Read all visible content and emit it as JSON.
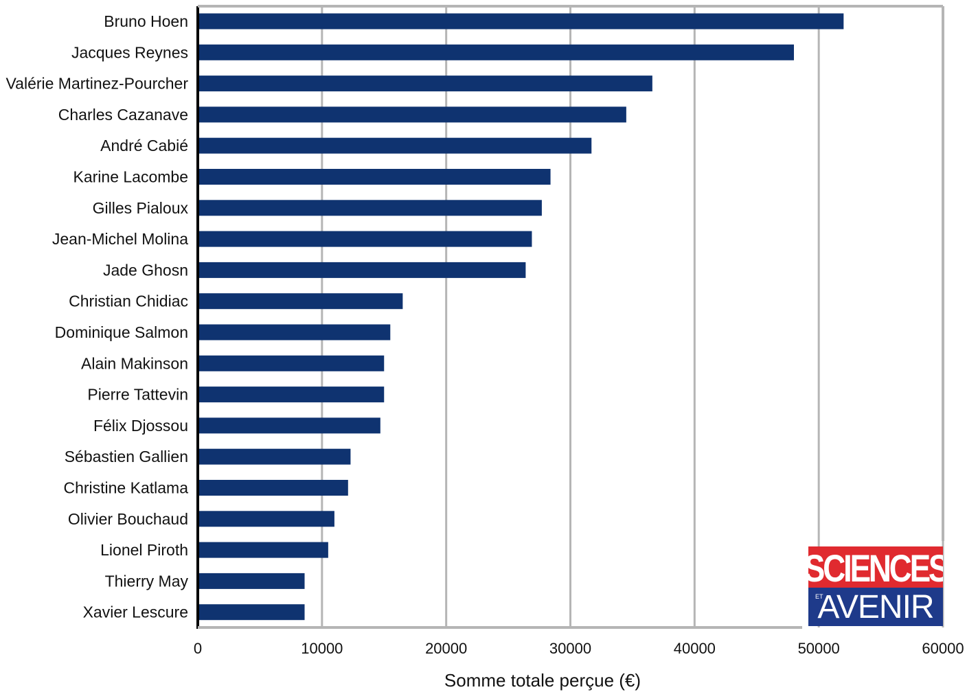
{
  "chart_data": {
    "type": "bar",
    "orientation": "horizontal",
    "categories": [
      "Bruno Hoen",
      "Jacques Reynes",
      "Valérie Martinez-Pourcher",
      "Charles Cazanave",
      "André Cabié",
      "Karine Lacombe",
      "Gilles Pialoux",
      "Jean-Michel Molina",
      "Jade Ghosn",
      "Christian Chidiac",
      "Dominique Salmon",
      "Alain Makinson",
      "Pierre Tattevin",
      "Félix Djossou",
      "Sébastien Gallien",
      "Christine Katlama",
      "Olivier Bouchaud",
      "Lionel Piroth",
      "Thierry May",
      "Xavier Lescure"
    ],
    "values": [
      52000,
      48000,
      36600,
      34500,
      31700,
      28400,
      27700,
      26900,
      26400,
      16500,
      15500,
      15000,
      15000,
      14700,
      12300,
      12100,
      11000,
      10500,
      8600,
      8600
    ],
    "xlabel": "Somme totale perçue (€)",
    "xlim": [
      0,
      60000
    ],
    "xticks": [
      "0",
      "10000",
      "20000",
      "30000",
      "40000",
      "50000",
      "60000"
    ],
    "grid": "vertical",
    "bar_color": "#0f3370",
    "grid_color": "#b5b5b5"
  },
  "logo": {
    "line1": "SCIENCES",
    "small": "ET",
    "line2": "AVENIR",
    "red": "#e02a2f",
    "blue": "#1e3a8a"
  }
}
